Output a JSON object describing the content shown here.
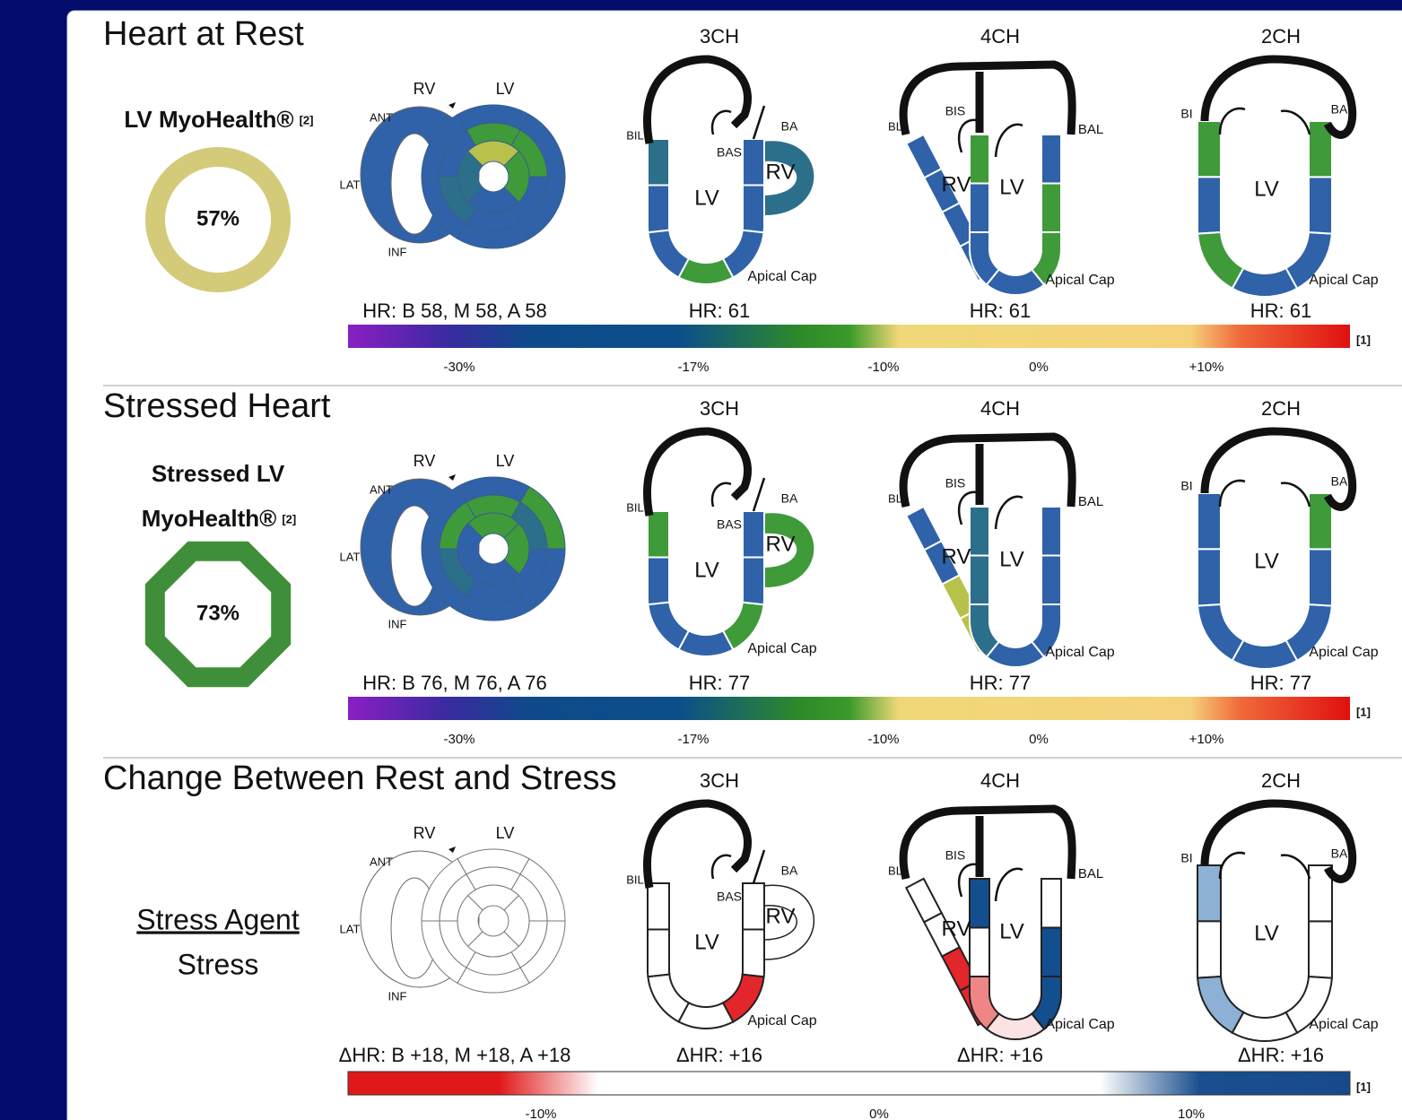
{
  "sections": [
    {
      "title": "Heart at Rest",
      "left": {
        "lines": [
          {
            "text": "LV MyoHealth®",
            "ref": "[2]"
          }
        ],
        "score": "57%",
        "shape": "ring",
        "color": "#d4cb7a"
      },
      "outline": "#ffffff",
      "bullseye": {
        "labels": [
          "RV",
          "LV",
          "ANT",
          "LAT",
          "INF"
        ],
        "rv_color": "#2f62a8",
        "colors": [
          "#2f62a8",
          "#2f62a8",
          "#2f62a8",
          "#2f62a8",
          "#2f62a8",
          "#2f62a8",
          "#3f9a3a",
          "#3f9a3a",
          "#2f62a8",
          "#2f62a8",
          "#2c6f8a",
          "#2f62a8",
          "#b8c24a",
          "#3f9a3a",
          "#2f62a8",
          "#2c6f8a"
        ]
      },
      "hr_summary": "HR: B 58, M 58, A 58",
      "views": [
        {
          "name": "3CH",
          "hr": "HR: 61",
          "labels": [
            "BIL",
            "BAS",
            "BA",
            "RV",
            "LV",
            "Apical Cap"
          ],
          "colors": [
            "#2c6f8a",
            "#2f62a8",
            "#2f62a8",
            "#3f9a3a",
            "#2f62a8",
            "#2f62a8",
            "#2f62a8"
          ],
          "rv_color": "#2c6f8a"
        },
        {
          "name": "4CH",
          "hr": "HR: 61",
          "labels": [
            "BL",
            "BIS",
            "BAL",
            "RV",
            "LV",
            "Apical Cap"
          ],
          "colors": [
            "#3f9a3a",
            "#2f62a8",
            "#2f62a8",
            "#2f62a8",
            "#3f9a3a",
            "#3f9a3a",
            "#2f62a8"
          ],
          "rv_colors": [
            "#2f62a8",
            "#2f62a8",
            "#2f62a8",
            "#2f62a8"
          ]
        },
        {
          "name": "2CH",
          "hr": "HR: 61",
          "labels": [
            "BI",
            "BA",
            "LV",
            "Apical Cap"
          ],
          "colors": [
            "#3f9a3a",
            "#2f62a8",
            "#3f9a3a",
            "#2f62a8",
            "#2f62a8",
            "#2f62a8",
            "#3f9a3a"
          ]
        }
      ],
      "scale": {
        "ticks": [
          "-30%",
          "-17%",
          "-10%",
          "0%",
          "+10%"
        ],
        "ref": "[1]",
        "gradient": [
          "#8a1fc4",
          "#3a2aa0",
          "#0f4a8a",
          "#0b4f8a",
          "#2d8a2a",
          "#3a9a2a",
          "#f0d878",
          "#f5d27a",
          "#f06a3a",
          "#e01010"
        ]
      }
    },
    {
      "title": "Stressed Heart",
      "left": {
        "lines": [
          {
            "text": "Stressed LV"
          },
          {
            "text": "MyoHealth®",
            "ref": "[2]"
          }
        ],
        "score": "73%",
        "shape": "octagon",
        "color": "#3f8f3a"
      },
      "outline": "#ffffff",
      "bullseye": {
        "labels": [
          "RV",
          "LV",
          "ANT",
          "LAT",
          "INF"
        ],
        "rv_color": "#2f62a8",
        "colors": [
          "#2f62a8",
          "#3f9a3a",
          "#2f62a8",
          "#2f62a8",
          "#2f62a8",
          "#2f62a8",
          "#3f9a3a",
          "#2c6f8a",
          "#2f62a8",
          "#2f62a8",
          "#2c6f8a",
          "#3f9a3a",
          "#3f9a3a",
          "#3f9a3a",
          "#2f62a8",
          "#2f62a8"
        ]
      },
      "hr_summary": "HR: B 76, M 76, A 76",
      "views": [
        {
          "name": "3CH",
          "hr": "HR: 77",
          "labels": [
            "BIL",
            "BAS",
            "BA",
            "RV",
            "LV",
            "Apical Cap"
          ],
          "colors": [
            "#3f9a3a",
            "#2f62a8",
            "#2f62a8",
            "#2f62a8",
            "#3f9a3a",
            "#2f62a8",
            "#2f62a8"
          ],
          "rv_color": "#3f9a3a"
        },
        {
          "name": "4CH",
          "hr": "HR: 77",
          "labels": [
            "BL",
            "BIS",
            "BAL",
            "RV",
            "LV",
            "Apical Cap"
          ],
          "colors": [
            "#2c6f8a",
            "#2c6f8a",
            "#2c6f8a",
            "#2f62a8",
            "#2f62a8",
            "#2f62a8",
            "#2f62a8"
          ],
          "rv_colors": [
            "#2f62a8",
            "#2f62a8",
            "#b8c24a",
            "#b8c24a"
          ]
        },
        {
          "name": "2CH",
          "hr": "HR: 77",
          "labels": [
            "BI",
            "BA",
            "LV",
            "Apical Cap"
          ],
          "colors": [
            "#2f62a8",
            "#2f62a8",
            "#2f62a8",
            "#2f62a8",
            "#2f62a8",
            "#2f62a8",
            "#3f9a3a"
          ]
        }
      ],
      "scale": {
        "ticks": [
          "-30%",
          "-17%",
          "-10%",
          "0%",
          "+10%"
        ],
        "ref": "[1]",
        "gradient": [
          "#8a1fc4",
          "#3a2aa0",
          "#0f4a8a",
          "#0b4f8a",
          "#2d8a2a",
          "#3a9a2a",
          "#f0d878",
          "#f5d27a",
          "#f06a3a",
          "#e01010"
        ]
      }
    },
    {
      "title": "Change Between Rest and Stress",
      "left": {
        "lines": [
          {
            "text": "Stress Agent",
            "underline": true
          },
          {
            "text": "Stress"
          }
        ]
      },
      "outline": "#222222",
      "bullseye": {
        "labels": [
          "RV",
          "LV",
          "ANT",
          "LAT",
          "INF"
        ],
        "rv_color": "#ffffff",
        "colors": [
          "#ffffff",
          "#ffffff",
          "#ffffff",
          "#ffffff",
          "#ffffff",
          "#ffffff",
          "#ffffff",
          "#ffffff",
          "#ffffff",
          "#ffffff",
          "#ffffff",
          "#ffffff",
          "#ffffff",
          "#ffffff",
          "#ffffff",
          "#ffffff"
        ]
      },
      "hr_summary": "ΔHR: B +18, M +18, A +18",
      "views": [
        {
          "name": "3CH",
          "hr": "ΔHR: +16",
          "labels": [
            "BIL",
            "BAS",
            "BA",
            "RV",
            "LV",
            "Apical Cap"
          ],
          "colors": [
            "#ffffff",
            "#ffffff",
            "#ffffff",
            "#ffffff",
            "#e3262b",
            "#ffffff",
            "#ffffff"
          ],
          "rv_color": "#ffffff"
        },
        {
          "name": "4CH",
          "hr": "ΔHR: +16",
          "labels": [
            "BL",
            "BIS",
            "BAL",
            "RV",
            "LV",
            "Apical Cap"
          ],
          "colors": [
            "#134f8f",
            "#ffffff",
            "#f08585",
            "#fbe3e3",
            "#134f8f",
            "#134f8f",
            "#ffffff"
          ],
          "rv_colors": [
            "#ffffff",
            "#ffffff",
            "#e3262b",
            "#e3262b"
          ]
        },
        {
          "name": "2CH",
          "hr": "ΔHR: +16",
          "labels": [
            "BI",
            "BA",
            "LV",
            "Apical Cap"
          ],
          "colors": [
            "#8db1d5",
            "#ffffff",
            "#8db1d5",
            "#ffffff",
            "#ffffff",
            "#ffffff",
            "#ffffff"
          ]
        }
      ],
      "scale": {
        "ticks": [
          "-10%",
          "0%",
          "10%"
        ],
        "ref": "[1]",
        "gradient": [
          "#e01818",
          "#e01818",
          "#ffffff",
          "#ffffff",
          "#1a4f8f",
          "#164a8c"
        ]
      }
    }
  ]
}
